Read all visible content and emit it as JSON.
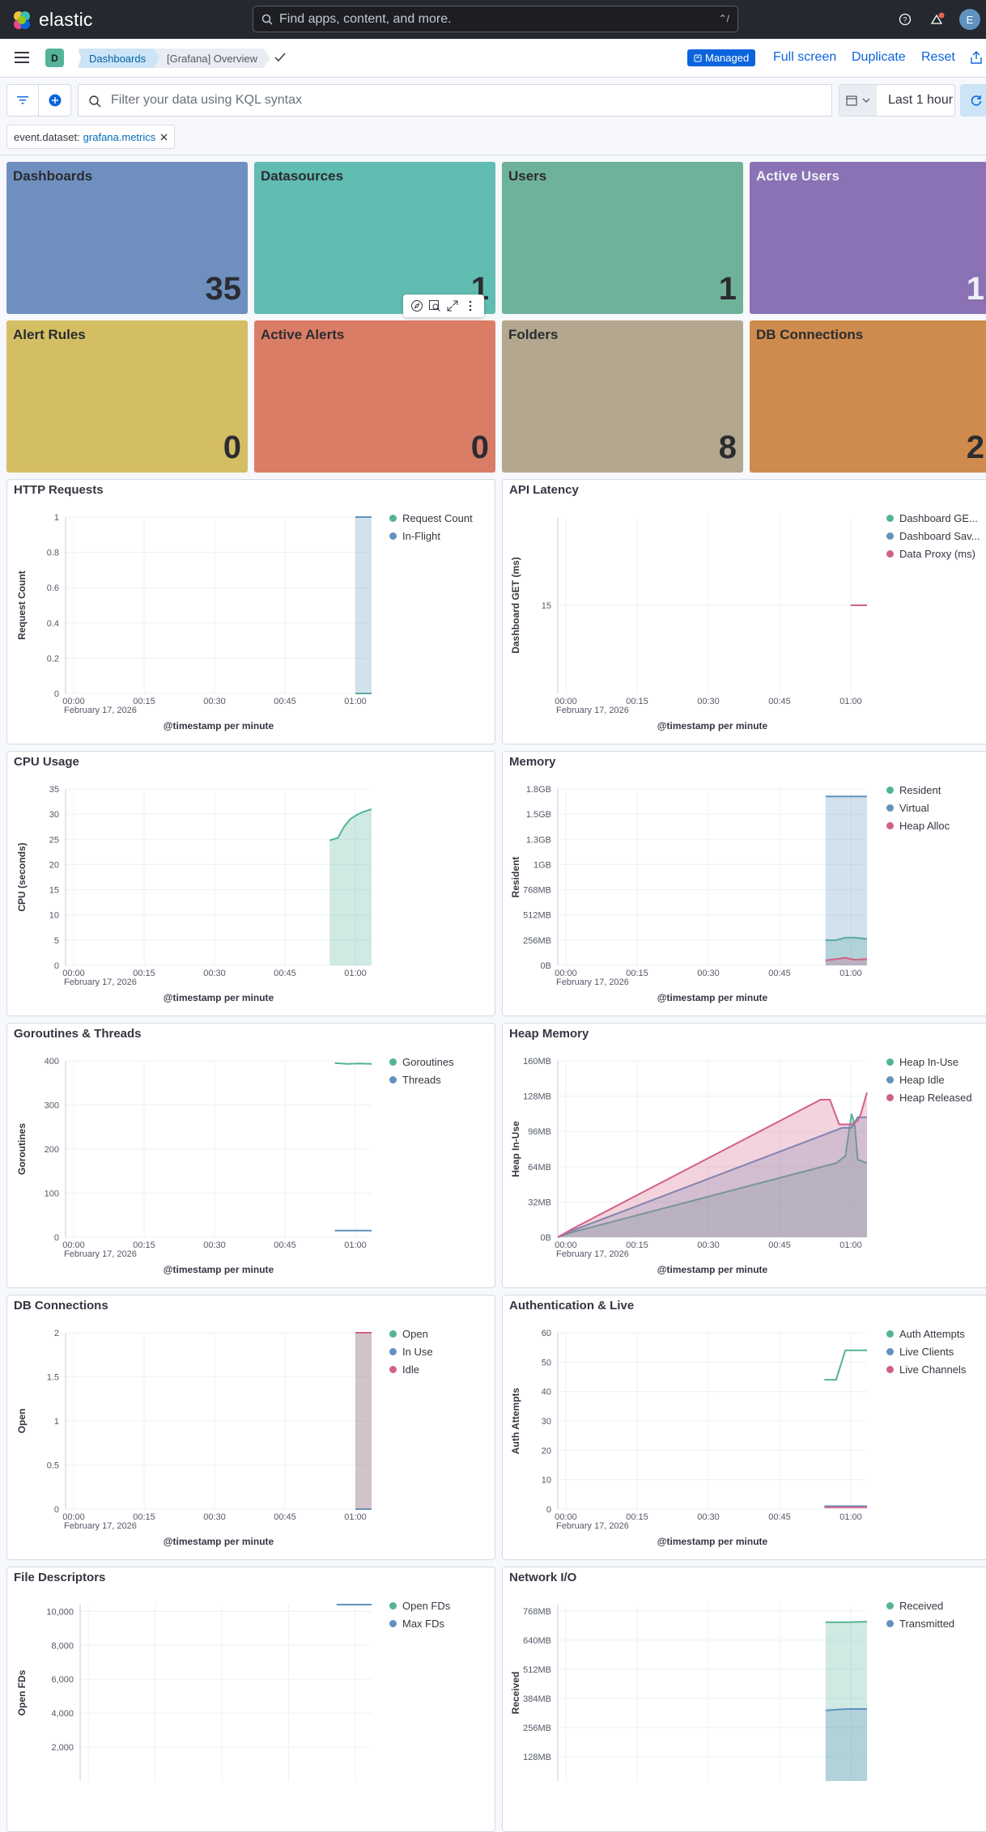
{
  "header": {
    "logo_text": "elastic",
    "search_placeholder": "Find apps, content, and more.",
    "search_shortcut": "⌃/",
    "user_initial": "E"
  },
  "nav": {
    "space_initial": "D",
    "breadcrumbs": [
      "Dashboards",
      "[Grafana] Overview"
    ],
    "managed_badge": "Managed",
    "actions": [
      "Full screen",
      "Duplicate",
      "Reset"
    ]
  },
  "filter": {
    "kql_placeholder": "Filter your data using KQL syntax",
    "time_range": "Last 1 hour",
    "pill_field": "event.dataset:",
    "pill_value": "grafana.metrics"
  },
  "tiles": [
    {
      "title": "Dashboards",
      "value": "35",
      "color": "#6f8fbf"
    },
    {
      "title": "Datasources",
      "value": "1",
      "color": "#61bcb1"
    },
    {
      "title": "Users",
      "value": "1",
      "color": "#6fb29a"
    },
    {
      "title": "Active Users",
      "value": "1",
      "color": "#8a72b4"
    },
    {
      "title": "Alert Rules",
      "value": "0",
      "color": "#d4be63"
    },
    {
      "title": "Active Alerts",
      "value": "0",
      "color": "#da7d66"
    },
    {
      "title": "Folders",
      "value": "8",
      "color": "#b4a78f"
    },
    {
      "title": "DB Connections",
      "value": "2",
      "color": "#cf8b4d"
    }
  ],
  "chart_data": [
    {
      "id": "http",
      "title": "HTTP Requests",
      "type": "area",
      "ylabel": "Request Count",
      "xlabel": "@timestamp per minute",
      "yticks": [
        "0",
        "0.2",
        "0.4",
        "0.6",
        "0.8",
        "1"
      ],
      "ylim": [
        0,
        1
      ],
      "xticks": [
        "00:00",
        "00:15",
        "00:30",
        "00:45",
        "01:00"
      ],
      "date": "February 17, 2026",
      "series": [
        {
          "name": "Request Count",
          "color": "#54b399",
          "values": [
            [
              0.947,
              0
            ],
            [
              1.0,
              0
            ]
          ]
        },
        {
          "name": "In-Flight",
          "color": "#6092c0",
          "values": [
            [
              0.947,
              1
            ],
            [
              1.0,
              1
            ]
          ]
        }
      ]
    },
    {
      "id": "api",
      "title": "API Latency",
      "type": "line",
      "ylabel": "Dashboard GET (ms)",
      "xlabel": "@timestamp per minute",
      "yticks": [
        "15"
      ],
      "ylim": [
        0,
        30
      ],
      "xticks": [
        "00:00",
        "00:15",
        "00:30",
        "00:45",
        "01:00"
      ],
      "date": "February 17, 2026",
      "series": [
        {
          "name": "Dashboard GE...",
          "color": "#54b399",
          "values": []
        },
        {
          "name": "Dashboard Sav...",
          "color": "#6092c0",
          "values": []
        },
        {
          "name": "Data Proxy (ms)",
          "color": "#d36086",
          "values": [
            [
              0.947,
              15
            ],
            [
              1.0,
              15
            ]
          ]
        }
      ]
    },
    {
      "id": "cpu",
      "title": "CPU Usage",
      "type": "area",
      "ylabel": "CPU (seconds)",
      "xlabel": "@timestamp per minute",
      "yticks": [
        "0",
        "5",
        "10",
        "15",
        "20",
        "25",
        "30",
        "35"
      ],
      "ylim": [
        0,
        35
      ],
      "xticks": [
        "00:00",
        "00:15",
        "00:30",
        "00:45",
        "01:00"
      ],
      "date": "February 17, 2026",
      "series": [
        {
          "name": "CPU",
          "color": "#54b399",
          "values": [
            [
              0.863,
              24.8
            ],
            [
              0.89,
              25.3
            ],
            [
              0.91,
              27.5
            ],
            [
              0.93,
              29
            ],
            [
              0.95,
              29.8
            ],
            [
              0.97,
              30.4
            ],
            [
              1.0,
              31
            ]
          ]
        }
      ]
    },
    {
      "id": "mem",
      "title": "Memory",
      "type": "area",
      "ylabel": "Resident",
      "xlabel": "@timestamp per minute",
      "yticks": [
        "0B",
        "256MB",
        "512MB",
        "768MB",
        "1GB",
        "1.3GB",
        "1.5GB",
        "1.8GB"
      ],
      "ylim": [
        0,
        7
      ],
      "xticks": [
        "00:00",
        "00:15",
        "00:30",
        "00:45",
        "01:00"
      ],
      "date": "February 17, 2026",
      "series": [
        {
          "name": "Resident",
          "color": "#54b399",
          "values": [
            [
              0.866,
              1
            ],
            [
              0.9,
              1
            ],
            [
              0.93,
              1.1
            ],
            [
              0.96,
              1.1
            ],
            [
              1.0,
              1.05
            ]
          ]
        },
        {
          "name": "Virtual",
          "color": "#6092c0",
          "values": [
            [
              0.866,
              6.7
            ],
            [
              1.0,
              6.7
            ]
          ]
        },
        {
          "name": "Heap Alloc",
          "color": "#d36086",
          "values": [
            [
              0.866,
              0.2
            ],
            [
              0.9,
              0.25
            ],
            [
              0.93,
              0.3
            ],
            [
              0.96,
              0.22
            ],
            [
              1.0,
              0.25
            ]
          ]
        }
      ]
    },
    {
      "id": "goro",
      "title": "Goroutines & Threads",
      "type": "line",
      "ylabel": "Goroutines",
      "xlabel": "@timestamp per minute",
      "yticks": [
        "0",
        "100",
        "200",
        "300",
        "400"
      ],
      "ylim": [
        0,
        400
      ],
      "xticks": [
        "00:00",
        "00:15",
        "00:30",
        "00:45",
        "01:00"
      ],
      "date": "February 17, 2026",
      "series": [
        {
          "name": "Goroutines",
          "color": "#54b399",
          "values": [
            [
              0.88,
              395
            ],
            [
              0.92,
              393
            ],
            [
              0.96,
              394
            ],
            [
              1.0,
              393
            ]
          ]
        },
        {
          "name": "Threads",
          "color": "#6092c0",
          "values": [
            [
              0.88,
              15
            ],
            [
              1.0,
              15
            ]
          ]
        }
      ]
    },
    {
      "id": "heap",
      "title": "Heap Memory",
      "type": "area",
      "ylabel": "Heap In-Use",
      "xlabel": "@timestamp per minute",
      "yticks": [
        "0B",
        "32MB",
        "64MB",
        "96MB",
        "128MB",
        "160MB"
      ],
      "ylim": [
        0,
        5
      ],
      "xticks": [
        "00:00",
        "00:15",
        "00:30",
        "00:45",
        "01:00"
      ],
      "date": "February 17, 2026",
      "series": [
        {
          "name": "Heap In-Use",
          "color": "#54b399",
          "values": [
            [
              0,
              0
            ],
            [
              0.05,
              0.15
            ],
            [
              0.9,
              2.1
            ],
            [
              0.93,
              2.3
            ],
            [
              0.95,
              3.5
            ],
            [
              0.96,
              3.2
            ],
            [
              0.97,
              2.2
            ],
            [
              1.0,
              2.1
            ]
          ]
        },
        {
          "name": "Heap Idle",
          "color": "#6092c0",
          "values": [
            [
              0,
              0
            ],
            [
              0.05,
              0.2
            ],
            [
              0.92,
              3.1
            ],
            [
              0.95,
              3.1
            ],
            [
              0.97,
              3.4
            ],
            [
              1.0,
              3.4
            ]
          ]
        },
        {
          "name": "Heap Released",
          "color": "#d36086",
          "values": [
            [
              0,
              0
            ],
            [
              0.05,
              0.25
            ],
            [
              0.85,
              3.9
            ],
            [
              0.88,
              3.9
            ],
            [
              0.91,
              3.2
            ],
            [
              0.95,
              3.2
            ],
            [
              0.97,
              3.3
            ],
            [
              0.98,
              3.5
            ],
            [
              1.0,
              4.1
            ]
          ]
        }
      ]
    },
    {
      "id": "db",
      "title": "DB Connections",
      "type": "area",
      "ylabel": "Open",
      "xlabel": "@timestamp per minute",
      "yticks": [
        "0",
        "0.5",
        "1",
        "1.5",
        "2"
      ],
      "ylim": [
        0,
        2
      ],
      "xticks": [
        "00:00",
        "00:15",
        "00:30",
        "00:45",
        "01:00"
      ],
      "date": "February 17, 2026",
      "series": [
        {
          "name": "Open",
          "color": "#54b399",
          "values": [
            [
              0.947,
              2
            ],
            [
              1.0,
              2
            ]
          ]
        },
        {
          "name": "In Use",
          "color": "#6092c0",
          "values": [
            [
              0.947,
              0
            ],
            [
              1.0,
              0
            ]
          ]
        },
        {
          "name": "Idle",
          "color": "#d36086",
          "values": [
            [
              0.947,
              2
            ],
            [
              1.0,
              2
            ]
          ]
        }
      ]
    },
    {
      "id": "auth",
      "title": "Authentication & Live",
      "type": "line",
      "ylabel": "Auth Attempts",
      "xlabel": "@timestamp per minute",
      "yticks": [
        "0",
        "10",
        "20",
        "30",
        "40",
        "50",
        "60"
      ],
      "ylim": [
        0,
        60
      ],
      "xticks": [
        "00:00",
        "00:15",
        "00:30",
        "00:45",
        "01:00"
      ],
      "date": "February 17, 2026",
      "series": [
        {
          "name": "Auth Attempts",
          "color": "#54b399",
          "values": [
            [
              0.862,
              44
            ],
            [
              0.9,
              44
            ],
            [
              0.93,
              54
            ],
            [
              1.0,
              54
            ]
          ]
        },
        {
          "name": "Live Clients",
          "color": "#6092c0",
          "values": [
            [
              0.862,
              1
            ],
            [
              1.0,
              1
            ]
          ]
        },
        {
          "name": "Live Channels",
          "color": "#d36086",
          "values": [
            [
              0.862,
              0.6
            ],
            [
              1.0,
              0.6
            ]
          ]
        }
      ]
    },
    {
      "id": "fd",
      "title": "File Descriptors",
      "type": "line",
      "ylabel": "Open FDs",
      "xlabel": "",
      "yticks": [
        "2,000",
        "4,000",
        "6,000",
        "8,000",
        "10,000"
      ],
      "ylim": [
        0,
        10000
      ],
      "xticks": [],
      "date": "",
      "series": [
        {
          "name": "Open FDs",
          "color": "#54b399",
          "values": []
        },
        {
          "name": "Max FDs",
          "color": "#6092c0",
          "values": [
            [
              0.88,
              10000
            ],
            [
              1.0,
              10000
            ]
          ]
        }
      ]
    },
    {
      "id": "net",
      "title": "Network I/O",
      "type": "area",
      "ylabel": "Received",
      "xlabel": "",
      "yticks": [
        "128MB",
        "256MB",
        "384MB",
        "512MB",
        "640MB",
        "768MB"
      ],
      "ylim": [
        0,
        6
      ],
      "xticks": [],
      "date": "",
      "series": [
        {
          "name": "Received",
          "color": "#54b399",
          "values": [
            [
              0.866,
              5.4
            ],
            [
              0.93,
              5.4
            ],
            [
              1.0,
              5.42
            ]
          ]
        },
        {
          "name": "Transmitted",
          "color": "#6092c0",
          "values": [
            [
              0.866,
              2.4
            ],
            [
              0.93,
              2.45
            ],
            [
              1.0,
              2.45
            ]
          ]
        }
      ]
    }
  ]
}
